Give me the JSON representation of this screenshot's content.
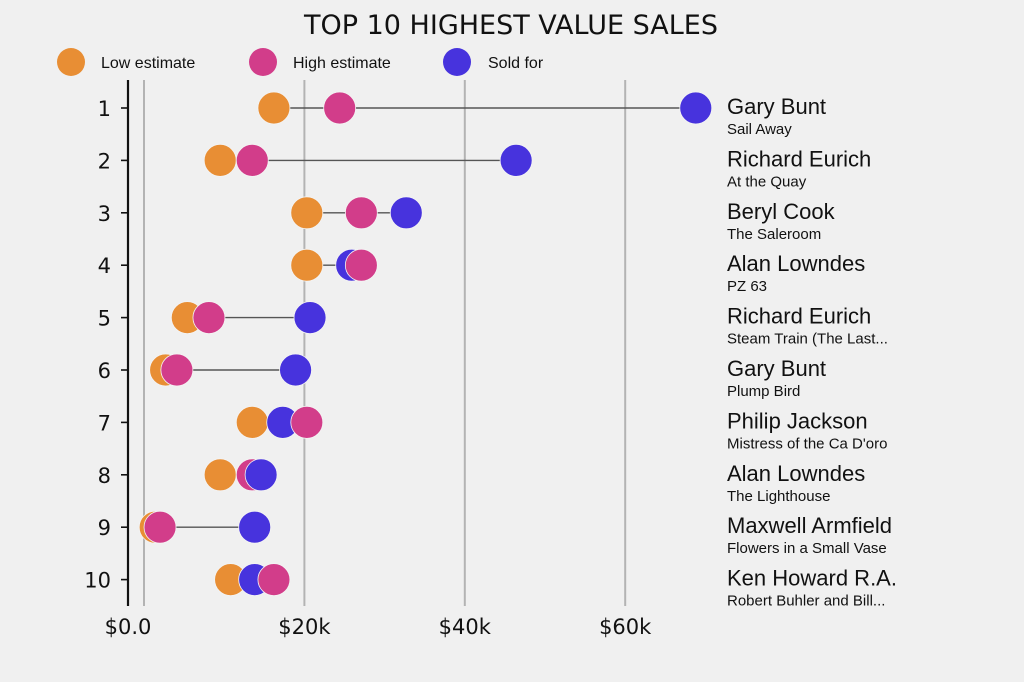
{
  "chart_data": {
    "type": "dumbbell",
    "title": "TOP 10 HIGHEST VALUE SALES",
    "xlabel": "",
    "ylabel": "",
    "xlim": [
      -2.1,
      72
    ],
    "x_ticks": [
      {
        "value": 0,
        "label": "$0.0"
      },
      {
        "value": 20,
        "label": "$20k"
      },
      {
        "value": 40,
        "label": "$40k"
      },
      {
        "value": 60,
        "label": "$60k"
      }
    ],
    "x_units": "thousands of dollars",
    "grid": "vertical",
    "legend": {
      "placement": "top-left",
      "entries": [
        {
          "key": "low",
          "label": "Low estimate",
          "color": "#E88E34"
        },
        {
          "key": "high",
          "label": "High estimate",
          "color": "#D23D8A"
        },
        {
          "key": "sold",
          "label": "Sold for",
          "color": "#4733DD"
        }
      ]
    },
    "rows": [
      {
        "rank": "1",
        "artist": "Gary Bunt",
        "work": "Sail Away",
        "low": 16.2,
        "high": 24.4,
        "sold": 68.8
      },
      {
        "rank": "2",
        "artist": "Richard Eurich",
        "work": "At the Quay",
        "low": 9.5,
        "high": 13.5,
        "sold": 46.4
      },
      {
        "rank": "3",
        "artist": "Beryl Cook",
        "work": "The Saleroom",
        "low": 20.3,
        "high": 27.1,
        "sold": 32.7
      },
      {
        "rank": "4",
        "artist": "Alan Lowndes",
        "work": "PZ 63",
        "low": 20.3,
        "high": 27.1,
        "sold": 25.9
      },
      {
        "rank": "5",
        "artist": "Richard Eurich",
        "work": "Steam Train (The Last...",
        "low": 5.4,
        "high": 8.1,
        "sold": 20.7
      },
      {
        "rank": "6",
        "artist": "Gary Bunt",
        "work": "Plump Bird",
        "low": 2.7,
        "high": 4.1,
        "sold": 18.9
      },
      {
        "rank": "7",
        "artist": "Philip Jackson",
        "work": "Mistress of the Ca D'oro",
        "low": 13.5,
        "high": 20.3,
        "sold": 17.3
      },
      {
        "rank": "8",
        "artist": "Alan Lowndes",
        "work": "The Lighthouse",
        "low": 9.5,
        "high": 13.5,
        "sold": 14.6
      },
      {
        "rank": "9",
        "artist": "Maxwell Armfield",
        "work": "Flowers in a Small Vase",
        "low": 1.4,
        "high": 2.0,
        "sold": 13.8
      },
      {
        "rank": "10",
        "artist": "Ken Howard R.A.",
        "work": "Robert Buhler and Bill...",
        "low": 10.8,
        "high": 16.2,
        "sold": 13.8
      }
    ]
  },
  "colors": {
    "background": "#f0f0f0",
    "grid": "#b3b3b3",
    "connector": "#555555",
    "axis": "#111111",
    "text": "#111111"
  }
}
